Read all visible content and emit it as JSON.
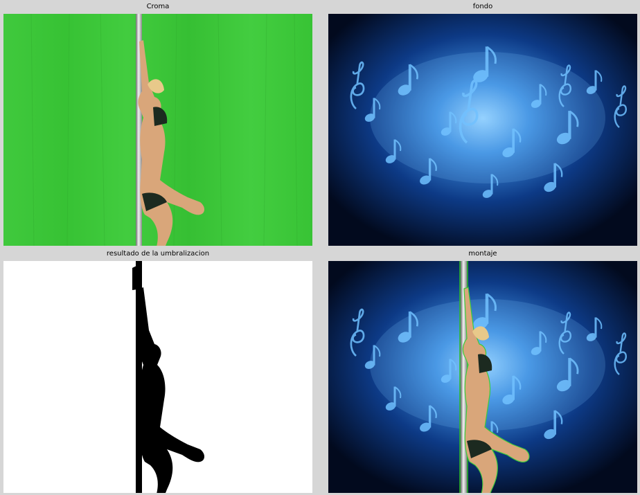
{
  "window": {
    "panels": [
      {
        "title": "Croma"
      },
      {
        "title": "fondo"
      },
      {
        "title": "resultado de la umbralizacion"
      },
      {
        "title": "montaje"
      }
    ]
  },
  "colors": {
    "background": "#d6d6d6",
    "chroma_green": "#3cc83a",
    "music_bg_dark": "#041230",
    "music_glow": "#4fa8f0"
  }
}
